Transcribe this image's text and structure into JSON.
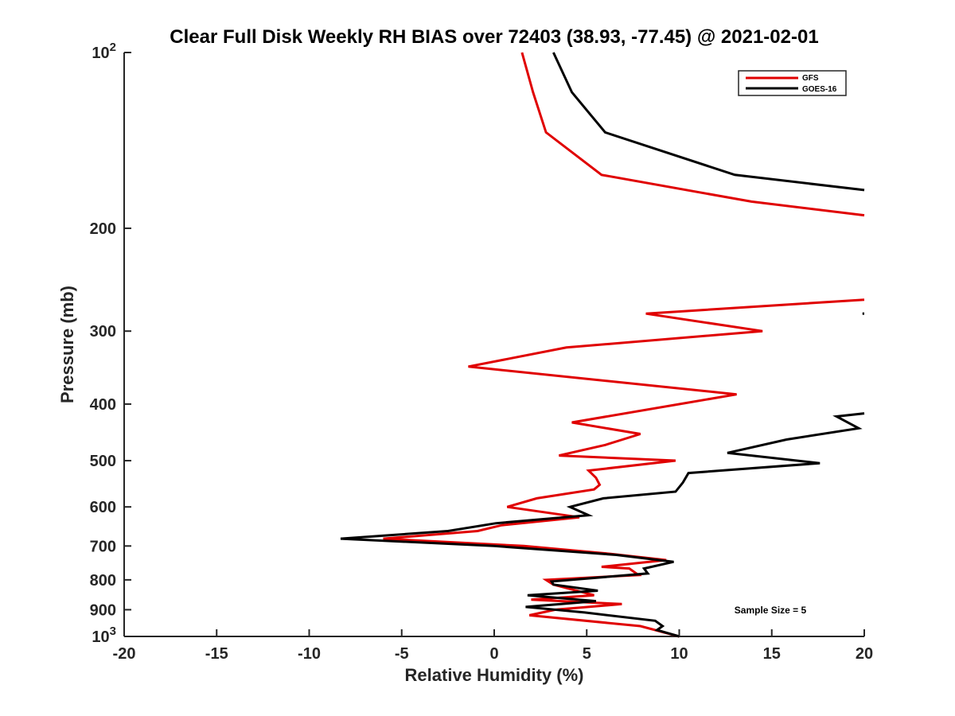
{
  "chart_data": {
    "type": "line",
    "title": "Clear Full Disk Weekly RH BIAS over 72403 (38.93, -77.45) @ 2021-02-01",
    "xlabel": "Relative Humidity (%)",
    "ylabel": "Pressure (mb)",
    "xlim": [
      -20,
      20
    ],
    "ylim": [
      100,
      1000
    ],
    "y_scale": "log",
    "y_reversed": true,
    "x_ticks": [
      -20,
      -15,
      -10,
      -5,
      0,
      5,
      10,
      15,
      20
    ],
    "y_ticks": [
      100,
      200,
      300,
      400,
      500,
      600,
      700,
      800,
      900,
      1000
    ],
    "y_tick_labels": {
      "100": {
        "base": "10",
        "exp": "2"
      },
      "200": "200",
      "300": "300",
      "400": "400",
      "500": "500",
      "600": "600",
      "700": "700",
      "800": "800",
      "900": "900",
      "1000": {
        "base": "10",
        "exp": "3"
      }
    },
    "grid": false,
    "legend_position": "top-right",
    "annotation": "Sample Size = 5",
    "series": [
      {
        "name": "GFS",
        "color": "#e00000",
        "segments": [
          [
            [
              1.5,
              100
            ],
            [
              2.1,
              117
            ],
            [
              2.8,
              137
            ],
            [
              5.8,
              162
            ],
            [
              13.9,
              180
            ],
            [
              20,
              190
            ]
          ],
          [
            [
              20,
              265
            ],
            [
              8.2,
              280
            ],
            [
              14.5,
              300
            ],
            [
              3.9,
              320
            ],
            [
              -1.4,
              345
            ],
            [
              13.1,
              385
            ],
            [
              4.2,
              430
            ],
            [
              7.9,
              450
            ],
            [
              6,
              470
            ],
            [
              3.5,
              490
            ],
            [
              9.8,
              500
            ],
            [
              5.1,
              520
            ],
            [
              5.5,
              535
            ],
            [
              5.7,
              550
            ],
            [
              5.4,
              560
            ],
            [
              2.3,
              580
            ],
            [
              0.7,
              600
            ],
            [
              4.6,
              625
            ],
            [
              0.4,
              645
            ],
            [
              -0.9,
              660
            ],
            [
              -6,
              680
            ],
            [
              1.6,
              700
            ],
            [
              6.3,
              722
            ],
            [
              9.3,
              740
            ],
            [
              5.8,
              760
            ],
            [
              7.3,
              765
            ],
            [
              7.8,
              785
            ],
            [
              2.8,
              800
            ],
            [
              3.2,
              815
            ],
            [
              5.4,
              850
            ],
            [
              2,
              865
            ],
            [
              6.9,
              880
            ],
            [
              3.3,
              900
            ],
            [
              1.9,
              920
            ],
            [
              7.9,
              960
            ],
            [
              10,
              1000
            ]
          ]
        ]
      },
      {
        "name": "GOES-16",
        "color": "#000000",
        "segments": [
          [
            [
              3.2,
              100
            ],
            [
              4.2,
              117
            ],
            [
              6,
              137
            ],
            [
              13,
              162
            ],
            [
              20,
              172
            ]
          ],
          [
            [
              19.9,
              280
            ],
            [
              20,
              280
            ]
          ],
          [
            [
              20,
              415
            ],
            [
              18.5,
              420
            ],
            [
              19.7,
              440
            ],
            [
              15.8,
              460
            ],
            [
              12.6,
              485
            ],
            [
              17.6,
              505
            ],
            [
              10.5,
              525
            ],
            [
              10.2,
              545
            ],
            [
              9.8,
              565
            ],
            [
              5.9,
              580
            ],
            [
              4.1,
              600
            ],
            [
              5.1,
              620
            ],
            [
              0.1,
              640
            ],
            [
              -2.5,
              660
            ],
            [
              -8.3,
              680
            ],
            [
              0,
              700
            ],
            [
              6.6,
              725
            ],
            [
              9.7,
              745
            ],
            [
              8.1,
              765
            ],
            [
              8.3,
              780
            ],
            [
              3.1,
              805
            ],
            [
              3.2,
              815
            ],
            [
              5.6,
              835
            ],
            [
              1.8,
              850
            ],
            [
              5.5,
              870
            ],
            [
              1.7,
              890
            ],
            [
              4.9,
              910
            ],
            [
              8.7,
              940
            ],
            [
              9.1,
              960
            ],
            [
              8.8,
              975
            ],
            [
              10,
              1000
            ]
          ]
        ]
      }
    ]
  }
}
